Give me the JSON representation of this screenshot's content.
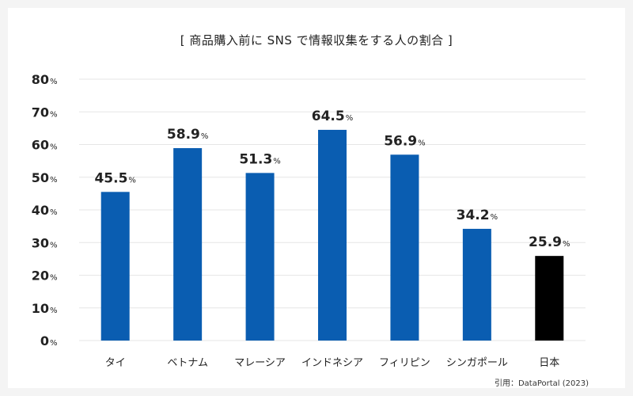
{
  "title": "[ 商品購入前に SNS で情報収集をする人の割合 ]",
  "source": "引用：DataPortal (2023)",
  "colors": {
    "default_bar": "#0a5db1",
    "highlight_bar": "#000000",
    "grid": "#e6e6e6",
    "text": "#222222"
  },
  "chart_data": {
    "type": "bar",
    "categories": [
      "タイ",
      "ベトナム",
      "マレーシア",
      "インドネシア",
      "フィリピン",
      "シンガポール",
      "日本"
    ],
    "values": [
      45.5,
      58.9,
      51.3,
      64.5,
      56.9,
      34.2,
      25.9
    ],
    "value_labels": [
      "45.5",
      "58.9",
      "51.3",
      "64.5",
      "56.9",
      "34.2",
      "25.9"
    ],
    "unit": "%",
    "bar_colors": [
      "#0a5db1",
      "#0a5db1",
      "#0a5db1",
      "#0a5db1",
      "#0a5db1",
      "#0a5db1",
      "#000000"
    ],
    "y_ticks": [
      0,
      10,
      20,
      30,
      40,
      50,
      60,
      70,
      80
    ],
    "ylim": [
      0,
      80
    ],
    "grid": true,
    "legend": "none"
  }
}
